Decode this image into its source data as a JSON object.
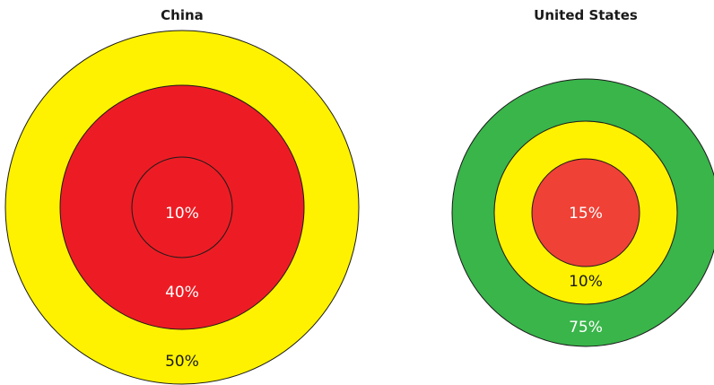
{
  "colors": {
    "yellow": "#fff200",
    "red": "#ed1c24",
    "red_light": "#ef4136",
    "green": "#39b54a",
    "outline": "#1a1a1a"
  },
  "china": {
    "title": "China",
    "rings": [
      {
        "label": "50%",
        "value": 50,
        "color": "#fff200"
      },
      {
        "label": "40%",
        "value": 40,
        "color": "#ed1c24"
      },
      {
        "label": "10%",
        "value": 10,
        "color": "#ed1c24"
      }
    ]
  },
  "us": {
    "title": "United States",
    "rings": [
      {
        "label": "75%",
        "value": 75,
        "color": "#39b54a"
      },
      {
        "label": "10%",
        "value": 10,
        "color": "#fff200"
      },
      {
        "label": "15%",
        "value": 15,
        "color": "#ef4136"
      }
    ]
  }
}
